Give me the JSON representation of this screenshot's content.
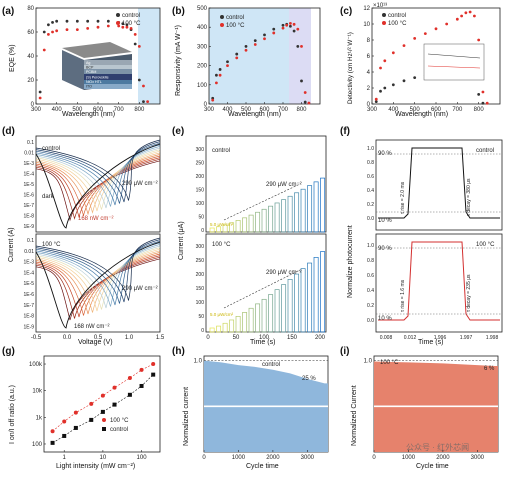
{
  "panels": {
    "a": {
      "letter": "(a)",
      "ylabel": "EQE (%)",
      "xlabel": "Wavelength (nm)",
      "legend": [
        "control",
        "100 °C"
      ],
      "stack_labels": [
        "Ag",
        "BCP",
        "PCBM",
        "(S) Perovskite",
        "NiOx HTL",
        "ITO"
      ]
    },
    "b": {
      "letter": "(b)",
      "ylabel": "Responsivity (mA W⁻¹)",
      "xlabel": "Wavelength (nm)",
      "legend": [
        "control",
        "100 °C"
      ]
    },
    "c": {
      "letter": "(c)",
      "ylabel": "Detectivity (cm Hz¹/² W⁻¹)",
      "xlabel": "Wavelength (nm)",
      "legend": [
        "control",
        "100 °C"
      ],
      "scale": "×10¹³"
    },
    "d": {
      "letter": "(d)",
      "ylabel": "Current (A)",
      "xlabel": "Voltage (V)",
      "top_label": "control",
      "bottom_label": "100 °C",
      "ann_dark": "dark",
      "ann_low_top": "168 nW cm⁻²",
      "ann_high_top": "290 μW cm⁻²",
      "ann_low_bot": "168 nW cm⁻²",
      "ann_high_bot": "290 μW cm⁻²"
    },
    "e": {
      "letter": "(e)",
      "ylabel": "Current (μA)",
      "xlabel": "Time (s)",
      "top_label": "control",
      "bottom_label": "100 °C",
      "ann_high": "290 μW cm⁻²",
      "ann_low": "5.0 μW/cm²"
    },
    "f": {
      "letter": "(f)",
      "ylabel": "Normalize photocurrent",
      "xlabel": "Time (s)",
      "top_label": "control",
      "bottom_label": "100 °C",
      "pct90": "90 %",
      "pct10": "10 %",
      "rise_top": "τ rise = 2.0 ms",
      "decay_top": "τ decay = 380 μs",
      "rise_bot": "τ rise = 1.6 ms",
      "decay_bot": "τ decay = 235 μs"
    },
    "g": {
      "letter": "(g)",
      "ylabel": "I on/I off ratio (a.u.)",
      "xlabel": "Light intensity (mW cm⁻²)",
      "legend": [
        "100 °C",
        "control"
      ]
    },
    "h": {
      "letter": "(h)",
      "ylabel": "Normalized current",
      "xlabel": "Cycle time",
      "label": "control",
      "drop": "25 %"
    },
    "i": {
      "letter": "(i)",
      "ylabel": "Normalized Current",
      "xlabel": "Cycle time",
      "label": "100 °C",
      "drop": "6 %",
      "watermark": "公众号 · 红外芯闻"
    }
  },
  "colors": {
    "control": "#333333",
    "treated": "#e0302a",
    "band": "#cfe6f6",
    "blue_fill": "#8fb7dc",
    "red_fill": "#e6826c"
  },
  "chart_data": [
    {
      "panel": "a",
      "type": "line",
      "xlim": [
        300,
        900
      ],
      "ylim": [
        0,
        80
      ],
      "series": [
        {
          "name": "control",
          "x": [
            320,
            340,
            360,
            380,
            400,
            450,
            500,
            550,
            600,
            650,
            700,
            720,
            740,
            760,
            780,
            800,
            820
          ],
          "values": [
            10,
            60,
            66,
            68,
            69,
            69,
            69,
            69,
            69,
            69,
            68,
            67,
            66,
            62,
            50,
            20,
            2
          ]
        },
        {
          "name": "100 °C",
          "x": [
            320,
            340,
            360,
            380,
            400,
            450,
            500,
            550,
            600,
            650,
            700,
            720,
            740,
            760,
            780,
            800,
            820,
            840
          ],
          "values": [
            5,
            45,
            58,
            60,
            61,
            62,
            62,
            63,
            64,
            65,
            65,
            64,
            64,
            63,
            58,
            48,
            15,
            2
          ]
        }
      ]
    },
    {
      "panel": "b",
      "type": "line",
      "xlim": [
        300,
        900
      ],
      "ylim": [
        0,
        500
      ],
      "series": [
        {
          "name": "control",
          "x": [
            320,
            340,
            360,
            400,
            450,
            500,
            550,
            600,
            650,
            700,
            720,
            740,
            760,
            780,
            800,
            820
          ],
          "values": [
            30,
            150,
            180,
            220,
            260,
            300,
            330,
            360,
            390,
            410,
            415,
            405,
            380,
            300,
            120,
            10
          ]
        },
        {
          "name": "100 °C",
          "x": [
            320,
            340,
            360,
            400,
            450,
            500,
            550,
            600,
            650,
            700,
            720,
            740,
            760,
            780,
            800,
            820,
            840
          ],
          "values": [
            20,
            110,
            150,
            200,
            240,
            280,
            310,
            340,
            370,
            395,
            410,
            420,
            415,
            390,
            300,
            60,
            5
          ]
        }
      ]
    },
    {
      "panel": "c",
      "type": "line",
      "xlim": [
        300,
        900
      ],
      "ylim": [
        0,
        12
      ],
      "series": [
        {
          "name": "control",
          "x": [
            320,
            340,
            360,
            400,
            450,
            500,
            550,
            600,
            650,
            700,
            720,
            740,
            760,
            780,
            800,
            820
          ],
          "values": [
            0.3,
            1.6,
            2.0,
            2.4,
            2.9,
            3.3,
            3.6,
            3.9,
            4.2,
            4.5,
            4.5,
            4.4,
            4.1,
            3.3,
            1.2,
            0.1
          ]
        },
        {
          "name": "100 °C",
          "x": [
            320,
            340,
            360,
            400,
            450,
            500,
            550,
            600,
            650,
            700,
            720,
            740,
            760,
            780,
            800,
            820,
            840
          ],
          "values": [
            0.6,
            4.5,
            5.4,
            6.4,
            7.3,
            8.2,
            8.8,
            9.4,
            10.0,
            10.6,
            11.0,
            11.4,
            11.5,
            11.0,
            8.0,
            1.5,
            0.1
          ]
        }
      ]
    },
    {
      "panel": "g",
      "type": "scatter",
      "xscale": "log",
      "yscale": "log",
      "xlim": [
        0.3,
        300
      ],
      "ylim": [
        50,
        200000
      ],
      "series": [
        {
          "name": "100 °C",
          "x": [
            0.5,
            1,
            2,
            5,
            10,
            20,
            50,
            100,
            200
          ],
          "values": [
            300,
            700,
            1500,
            3200,
            6500,
            13000,
            30000,
            60000,
            100000
          ]
        },
        {
          "name": "control",
          "x": [
            0.5,
            1,
            2,
            5,
            10,
            20,
            50,
            100,
            200
          ],
          "values": [
            110,
            200,
            400,
            800,
            1600,
            3000,
            7000,
            15000,
            40000
          ]
        }
      ]
    },
    {
      "panel": "h",
      "type": "area",
      "xlim": [
        0,
        3600
      ],
      "ylim": [
        0,
        1.05
      ],
      "series": [
        {
          "name": "control",
          "x": [
            0,
            500,
            1000,
            1500,
            2000,
            2500,
            3000,
            3500
          ],
          "values": [
            1.0,
            0.98,
            0.95,
            0.93,
            0.9,
            0.86,
            0.8,
            0.75
          ]
        }
      ]
    },
    {
      "panel": "i",
      "type": "area",
      "xlim": [
        0,
        3600
      ],
      "ylim": [
        0,
        1.05
      ],
      "series": [
        {
          "name": "100 °C",
          "x": [
            0,
            500,
            1000,
            1500,
            2000,
            2500,
            3000,
            3500
          ],
          "values": [
            0.99,
            0.985,
            0.98,
            0.975,
            0.97,
            0.96,
            0.95,
            0.94
          ]
        }
      ]
    }
  ]
}
